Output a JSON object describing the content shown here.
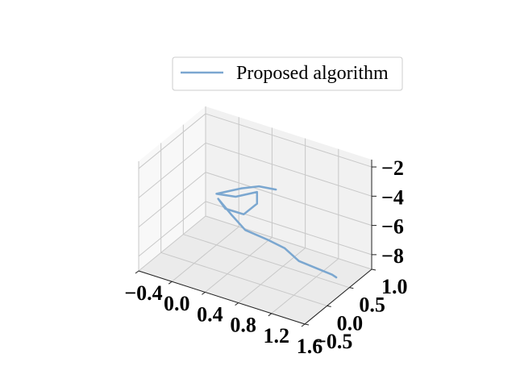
{
  "chart_data": {
    "type": "line",
    "projection": "3d",
    "title": "",
    "xlabel": "",
    "ylabel": "",
    "zlabel": "",
    "xlim": [
      -0.4,
      1.6
    ],
    "ylim": [
      -0.5,
      1.0
    ],
    "zlim": [
      -9,
      -1.5
    ],
    "x_ticks": [
      "−0.4",
      "0.0",
      "0.4",
      "0.8",
      "1.2",
      "1.6"
    ],
    "y_ticks": [
      "−0.5",
      "0.0",
      "0.5",
      "1.0"
    ],
    "z_ticks": [
      "−8",
      "−6",
      "−4",
      "−2"
    ],
    "grid": true,
    "legend": {
      "position": "top-center",
      "entries": [
        "Proposed algorithm"
      ]
    },
    "series": [
      {
        "name": "Proposed algorithm",
        "color": "#7ba7d0",
        "points": [
          {
            "x": 0.5,
            "y": 0.9,
            "z": -5.3
          },
          {
            "x": 0.35,
            "y": 0.8,
            "z": -5.1
          },
          {
            "x": 0.22,
            "y": 0.65,
            "z": -5.1
          },
          {
            "x": 0.0,
            "y": 0.5,
            "z": -5.5
          },
          {
            "x": 0.15,
            "y": 0.65,
            "z": -5.8
          },
          {
            "x": 0.3,
            "y": 0.85,
            "z": -5.7
          },
          {
            "x": 0.3,
            "y": 0.85,
            "z": -6.5
          },
          {
            "x": 0.22,
            "y": 0.7,
            "z": -7.0
          },
          {
            "x": 0.08,
            "y": 0.55,
            "z": -6.5
          },
          {
            "x": 0.02,
            "y": 0.5,
            "z": -5.8
          },
          {
            "x": 0.2,
            "y": 0.45,
            "z": -6.4
          },
          {
            "x": 0.4,
            "y": 0.4,
            "z": -7.0
          },
          {
            "x": 0.7,
            "y": 0.35,
            "z": -7.0
          },
          {
            "x": 0.9,
            "y": 0.35,
            "z": -7.2
          },
          {
            "x": 1.1,
            "y": 0.3,
            "z": -7.6
          },
          {
            "x": 1.5,
            "y": 0.3,
            "z": -7.8
          },
          {
            "x": 1.55,
            "y": 0.3,
            "z": -7.9
          }
        ]
      }
    ]
  }
}
